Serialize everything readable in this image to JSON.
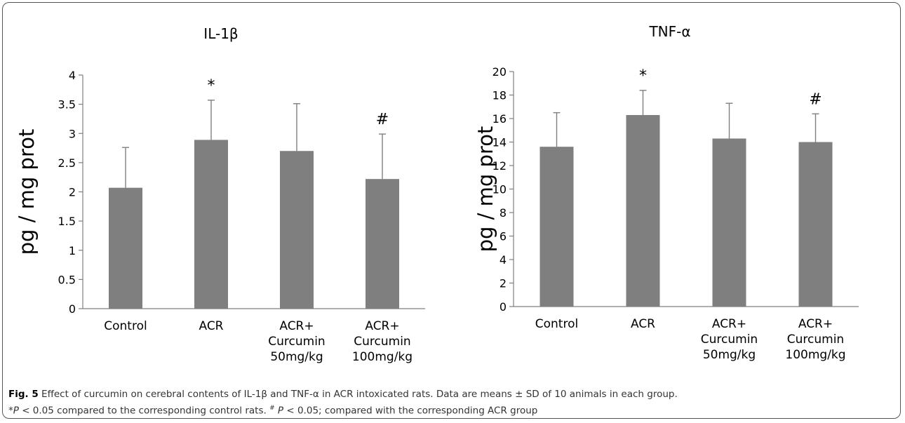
{
  "chart_data": [
    {
      "type": "bar",
      "title": "IL-1β",
      "ylabel": "pg / mg prot",
      "xlabel": "",
      "categories": [
        "Control",
        "ACR",
        "ACR+\nCurcumin\n50mg/kg",
        "ACR+\nCurcumin\n100mg/kg"
      ],
      "values": [
        2.07,
        2.89,
        2.7,
        2.22
      ],
      "errors": [
        0.69,
        0.68,
        0.81,
        0.77
      ],
      "annotations": [
        "",
        "*",
        "",
        "#"
      ],
      "ylim": [
        0,
        4
      ],
      "yticks": [
        "0",
        "0.5",
        "1",
        "1.5",
        "2",
        "2.5",
        "3",
        "3.5",
        "4"
      ],
      "grid": false,
      "bar_color": "#7f7f7f"
    },
    {
      "type": "bar",
      "title": "TNF-α",
      "ylabel": "pg / mg prot",
      "xlabel": "",
      "categories": [
        "Control",
        "ACR",
        "ACR+\nCurcumin\n50mg/kg",
        "ACR+\nCurcumin\n100mg/kg"
      ],
      "values": [
        13.6,
        16.3,
        14.3,
        14.0
      ],
      "errors": [
        2.9,
        2.1,
        3.0,
        2.4
      ],
      "annotations": [
        "",
        "*",
        "",
        "#"
      ],
      "ylim": [
        0,
        20
      ],
      "yticks": [
        "0",
        "2",
        "4",
        "6",
        "8",
        "10",
        "12",
        "14",
        "16",
        "18",
        "20"
      ],
      "grid": false,
      "bar_color": "#7f7f7f"
    }
  ],
  "caption": {
    "fig_label": "Fig. 5",
    "line1": " Effect of curcumin on cerebral contents of IL-1β and TNF-α in ACR intoxicated rats. Data are means ± SD of 10 animals in each group.",
    "star": "*",
    "p1": "P",
    "mid": " < 0.05 compared to the corresponding control rats. ",
    "hash": "#",
    "p2": "P",
    "end": " < 0.05; compared with the corresponding ACR group"
  }
}
